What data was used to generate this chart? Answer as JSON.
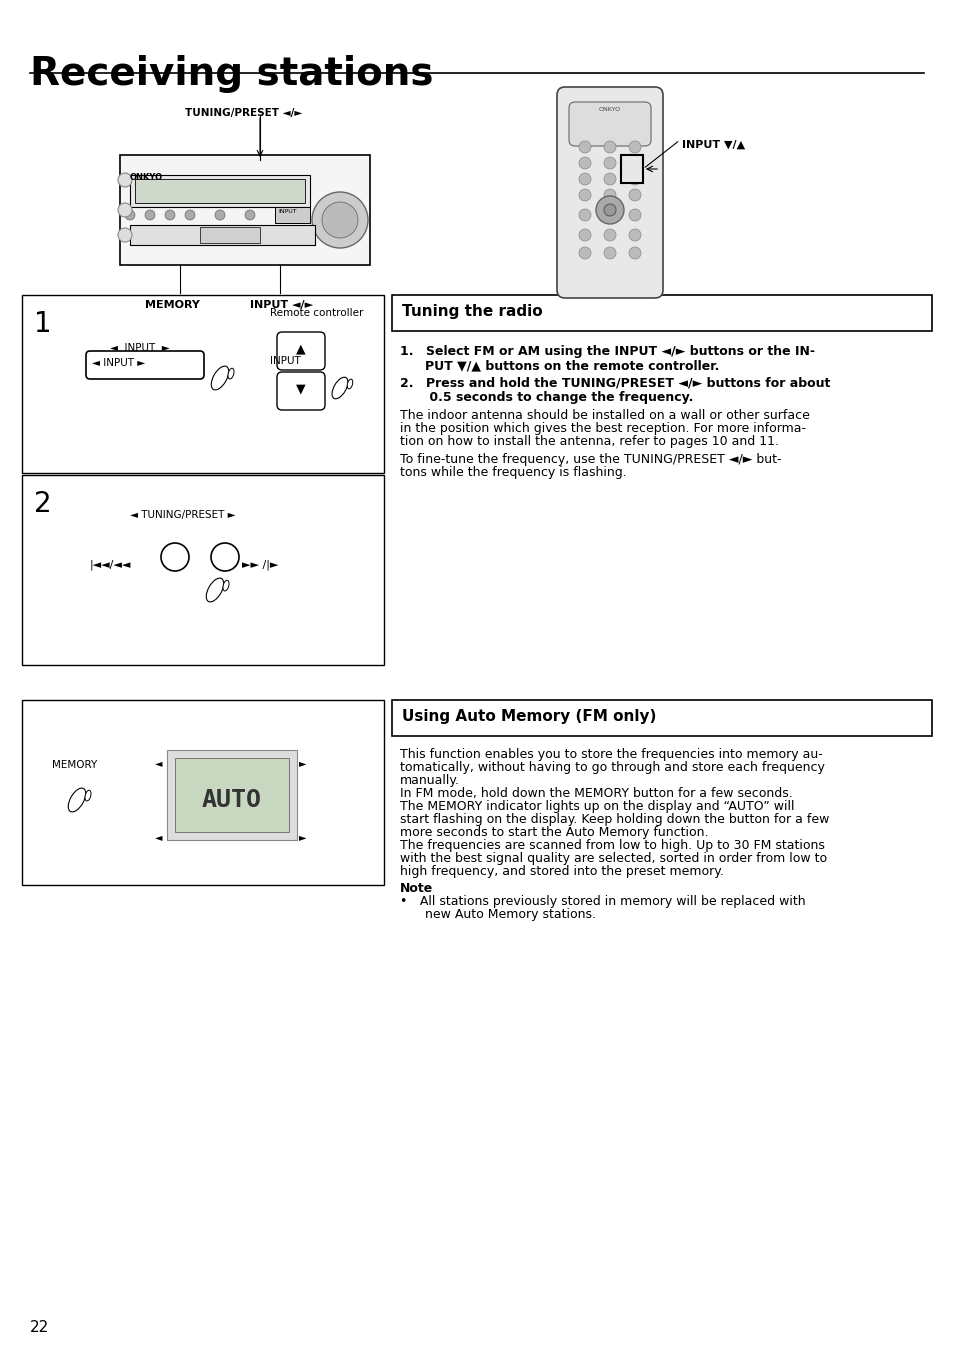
{
  "title": "Receiving stations",
  "page_number": "22",
  "bg_color": "#ffffff",
  "tuning_radio_header": "Tuning the radio",
  "tuning_step1_bold1": "1. Select FM or AM using the INPUT ◄/► buttons or the IN-",
  "tuning_step1_bold2": "  PUT ▼/▲ buttons on the remote controller.",
  "tuning_step2_bold1": "2. Press and hold the TUNING/PRESET ◄/► buttons for about",
  "tuning_step2_bold2": "    0.5 seconds to change the frequency.",
  "tuning_body1": "The indoor antenna should be installed on a wall or other surface",
  "tuning_body2": "in the position which gives the best reception. For more informa-",
  "tuning_body3": "tion on how to install the antenna, refer to pages 10 and 11.",
  "tuning_body4": "To fine-tune the frequency, use the TUNING/PRESET ◄/► but-",
  "tuning_body5": "tons while the frequency is flashing.",
  "auto_memory_header": "Using Auto Memory (FM only)",
  "auto_body1": "This function enables you to store the frequencies into memory au-",
  "auto_body2": "tomatically, without having to go through and store each frequency",
  "auto_body3": "manually.",
  "auto_body4": "In FM mode, hold down the MEMORY button for a few seconds.",
  "auto_body5": "The MEMORY indicator lights up on the display and “AUTO” will",
  "auto_body6": "start flashing on the display. Keep holding down the button for a few",
  "auto_body7": "more seconds to start the Auto Memory function.",
  "auto_body8": "The frequencies are scanned from low to high. Up to 30 FM stations",
  "auto_body9": "with the best signal quality are selected, sorted in order from low to",
  "auto_body10": "high frequency, and stored into the preset memory.",
  "note_header": "Note",
  "note_line1": "• All stations previously stored in memory will be replaced with",
  "note_line2": "  new Auto Memory stations.",
  "label_tuning_preset": "TUNING/PRESET ◄/►",
  "label_memory": "MEMORY",
  "label_input_lr": "INPUT ◄/►",
  "label_input_ud": "INPUT ▼/▲",
  "label_remote": "Remote controller",
  "label_input_btn": "INPUT",
  "label_tuning_preset2": "◄ TUNING/PRESET ►"
}
